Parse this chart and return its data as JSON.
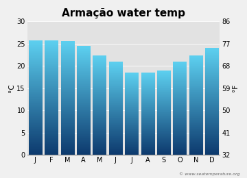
{
  "title": "Armação water temp",
  "months": [
    "J",
    "F",
    "M",
    "A",
    "M",
    "J",
    "J",
    "A",
    "S",
    "O",
    "N",
    "D"
  ],
  "values_c": [
    25.6,
    25.6,
    25.4,
    24.4,
    22.2,
    20.9,
    18.4,
    18.4,
    18.8,
    20.9,
    22.2,
    24.0
  ],
  "ylim_c": [
    0,
    30
  ],
  "yticks_c": [
    0,
    5,
    10,
    15,
    20,
    25,
    30
  ],
  "yticks_f": [
    32,
    41,
    50,
    59,
    68,
    77,
    86
  ],
  "ylabel_left": "°C",
  "ylabel_right": "°F",
  "color_top": "#5dd0f0",
  "color_bottom": "#0d3a6e",
  "bg_plot": "#e2e2e2",
  "bg_figure": "#f0f0f0",
  "watermark": "© www.seatemperature.org",
  "title_fontsize": 11,
  "tick_fontsize": 7,
  "label_fontsize": 7.5,
  "bar_width": 0.82
}
